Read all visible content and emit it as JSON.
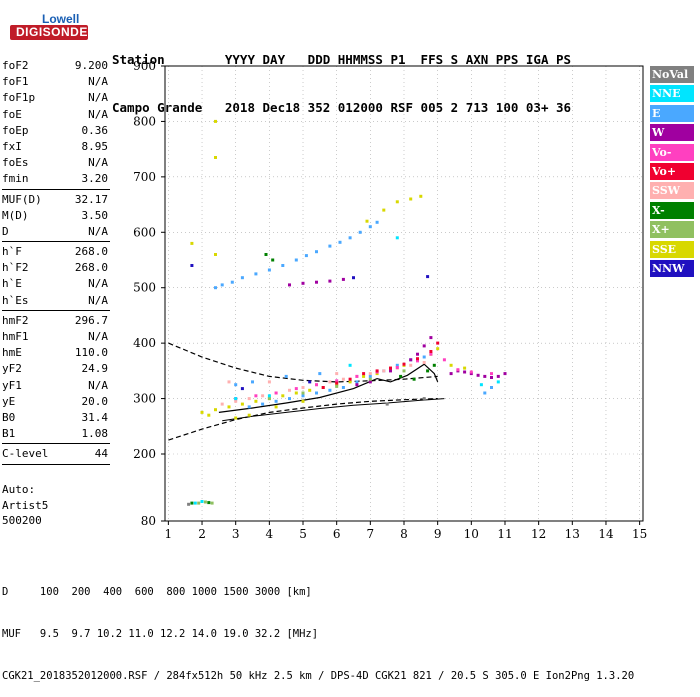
{
  "logo": {
    "line1": "Lowell",
    "line2": "DIGISONDE"
  },
  "header": {
    "row1": "Station        YYYY DAY   DDD HHMMSS P1  FFS S AXN PPS IGA PS",
    "row2": "Campo Grande   2018 Dec18 352 012000 RSF 005 2 713 100 03+ 36"
  },
  "params": [
    {
      "k": "foF2",
      "v": "9.200"
    },
    {
      "k": "foF1",
      "v": "N/A"
    },
    {
      "k": "foF1p",
      "v": "N/A"
    },
    {
      "k": "foE",
      "v": "N/A"
    },
    {
      "k": "foEp",
      "v": "0.36"
    },
    {
      "k": "fxI",
      "v": "8.95"
    },
    {
      "k": "foEs",
      "v": "N/A"
    },
    {
      "k": "fmin",
      "v": "3.20"
    },
    {
      "sep": true
    },
    {
      "k": "MUF(D)",
      "v": "32.17"
    },
    {
      "k": "M(D)",
      "v": "3.50"
    },
    {
      "k": "D",
      "v": "N/A"
    },
    {
      "sep": true
    },
    {
      "k": "h`F",
      "v": "268.0"
    },
    {
      "k": "h`F2",
      "v": "268.0"
    },
    {
      "k": "h`E",
      "v": "N/A"
    },
    {
      "k": "h`Es",
      "v": "N/A"
    },
    {
      "sep": true
    },
    {
      "k": "hmF2",
      "v": "296.7"
    },
    {
      "k": "hmF1",
      "v": "N/A"
    },
    {
      "k": "hmE",
      "v": "110.0"
    },
    {
      "k": "yF2",
      "v": "24.9"
    },
    {
      "k": "yF1",
      "v": "N/A"
    },
    {
      "k": "yE",
      "v": "20.0"
    },
    {
      "k": "B0",
      "v": "31.4"
    },
    {
      "k": "B1",
      "v": "1.08"
    },
    {
      "sep": true
    },
    {
      "k": "C-level",
      "v": "44"
    },
    {
      "sep": true
    }
  ],
  "auto": {
    "line1": "Auto:",
    "line2": "Artist5",
    "line3": "500200"
  },
  "legend": [
    {
      "label": "NoVal",
      "bg": "#808080",
      "fg": "#ffffff"
    },
    {
      "label": "NNE",
      "bg": "#00e5ff",
      "fg": "#ffffff"
    },
    {
      "label": "E",
      "bg": "#4aa8ff",
      "fg": "#ffffff"
    },
    {
      "label": "W",
      "bg": "#a000a0",
      "fg": "#ffffff"
    },
    {
      "label": "Vo-",
      "bg": "#ff40c0",
      "fg": "#ffffff"
    },
    {
      "label": "Vo+",
      "bg": "#f00030",
      "fg": "#ffffff"
    },
    {
      "label": "SSW",
      "bg": "#ffb0b0",
      "fg": "#ffffff"
    },
    {
      "label": "X-",
      "bg": "#008000",
      "fg": "#ffffff"
    },
    {
      "label": "X+",
      "bg": "#90c060",
      "fg": "#ffffff"
    },
    {
      "label": "SSE",
      "bg": "#d8d800",
      "fg": "#ffffff"
    },
    {
      "label": "NNW",
      "bg": "#2010c0",
      "fg": "#ffffff"
    }
  ],
  "footer": {
    "line1": "D     100  200  400  600  800 1000 1500 3000 [km]",
    "line2": "MUF   9.5  9.7 10.2 11.0 12.2 14.0 19.0 32.2 [MHz]",
    "line3": "CGK21_2018352012000.RSF / 284fx512h 50 kHz 2.5 km / DPS-4D CGK21 821 / 20.5 S 305.0 E Ion2Png 1.3.20"
  },
  "chart_data": {
    "type": "scatter",
    "xlim": [
      0.9,
      15.1
    ],
    "ylim": [
      80,
      900
    ],
    "xticks": [
      "1",
      "2",
      "3",
      "4",
      "5",
      "6",
      "7",
      "8",
      "9",
      "10",
      "11",
      "12",
      "13",
      "14",
      "15"
    ],
    "yticks": [
      "80",
      "200",
      "300",
      "400",
      "500",
      "600",
      "700",
      "800",
      "900"
    ],
    "grid": "dotted",
    "series": [
      {
        "color": "#4aa8ff",
        "points": [
          [
            2.4,
            500
          ],
          [
            2.6,
            505
          ],
          [
            2.9,
            510
          ],
          [
            3.2,
            518
          ],
          [
            3.6,
            525
          ],
          [
            4.0,
            532
          ],
          [
            4.4,
            540
          ],
          [
            4.8,
            550
          ],
          [
            5.1,
            558
          ],
          [
            5.4,
            565
          ],
          [
            5.8,
            575
          ],
          [
            6.1,
            582
          ],
          [
            6.4,
            590
          ],
          [
            6.7,
            600
          ],
          [
            7.0,
            610
          ],
          [
            7.2,
            618
          ],
          [
            3.4,
            285
          ],
          [
            3.8,
            290
          ],
          [
            4.2,
            295
          ],
          [
            4.6,
            300
          ],
          [
            5.0,
            305
          ],
          [
            5.4,
            310
          ],
          [
            5.8,
            315
          ],
          [
            6.2,
            320
          ],
          [
            6.6,
            330
          ],
          [
            7.0,
            340
          ],
          [
            7.4,
            350
          ],
          [
            7.8,
            360
          ],
          [
            8.2,
            370
          ],
          [
            8.6,
            375
          ],
          [
            10.4,
            310
          ],
          [
            10.6,
            320
          ],
          [
            3.0,
            325
          ],
          [
            3.5,
            330
          ],
          [
            4.5,
            340
          ],
          [
            5.5,
            345
          ]
        ]
      },
      {
        "color": "#a000a0",
        "points": [
          [
            4.6,
            505
          ],
          [
            5.0,
            508
          ],
          [
            5.4,
            510
          ],
          [
            5.8,
            512
          ],
          [
            6.2,
            515
          ],
          [
            9.4,
            345
          ],
          [
            9.6,
            350
          ],
          [
            9.8,
            348
          ],
          [
            10.0,
            345
          ],
          [
            10.2,
            342
          ],
          [
            10.4,
            340
          ],
          [
            10.6,
            338
          ],
          [
            10.8,
            340
          ],
          [
            11.0,
            345
          ],
          [
            8.4,
            380
          ],
          [
            8.6,
            395
          ],
          [
            8.8,
            410
          ],
          [
            8.2,
            370
          ],
          [
            7.6,
            350
          ],
          [
            7.0,
            330
          ],
          [
            6.6,
            325
          ]
        ]
      },
      {
        "color": "#d8d800",
        "points": [
          [
            2.4,
            800
          ],
          [
            2.4,
            735
          ],
          [
            1.7,
            580
          ],
          [
            2.4,
            560
          ],
          [
            6.9,
            620
          ],
          [
            7.4,
            640
          ],
          [
            7.8,
            655
          ],
          [
            8.2,
            660
          ],
          [
            8.5,
            665
          ],
          [
            2.0,
            275
          ],
          [
            2.4,
            280
          ],
          [
            2.8,
            285
          ],
          [
            3.2,
            290
          ],
          [
            3.6,
            295
          ],
          [
            4.0,
            300
          ],
          [
            4.4,
            305
          ],
          [
            4.8,
            310
          ],
          [
            5.2,
            315
          ],
          [
            5.6,
            320
          ],
          [
            6.0,
            325
          ],
          [
            6.4,
            330
          ],
          [
            6.8,
            340
          ],
          [
            7.2,
            345
          ],
          [
            7.6,
            355
          ],
          [
            8.0,
            360
          ],
          [
            8.4,
            370
          ],
          [
            8.8,
            380
          ],
          [
            9.0,
            390
          ],
          [
            9.4,
            360
          ],
          [
            9.8,
            355
          ],
          [
            2.2,
            270
          ],
          [
            3.0,
            265
          ],
          [
            3.4,
            270
          ],
          [
            4.2,
            285
          ],
          [
            5.0,
            295
          ]
        ]
      },
      {
        "color": "#ffb0b0",
        "points": [
          [
            2.6,
            290
          ],
          [
            3.0,
            295
          ],
          [
            3.4,
            300
          ],
          [
            3.8,
            305
          ],
          [
            4.2,
            310
          ],
          [
            4.6,
            315
          ],
          [
            5.0,
            320
          ],
          [
            5.4,
            325
          ],
          [
            5.8,
            330
          ],
          [
            6.2,
            335
          ],
          [
            6.6,
            340
          ],
          [
            7.0,
            345
          ],
          [
            7.4,
            350
          ],
          [
            7.8,
            355
          ],
          [
            8.2,
            360
          ],
          [
            8.6,
            365
          ],
          [
            2.8,
            330
          ],
          [
            4.0,
            330
          ],
          [
            6.0,
            345
          ]
        ]
      },
      {
        "color": "#ff40c0",
        "points": [
          [
            3.0,
            300
          ],
          [
            3.6,
            305
          ],
          [
            4.2,
            310
          ],
          [
            4.8,
            318
          ],
          [
            5.4,
            325
          ],
          [
            6.0,
            332
          ],
          [
            6.6,
            340
          ],
          [
            7.2,
            348
          ],
          [
            7.8,
            356
          ],
          [
            8.4,
            368
          ],
          [
            8.8,
            380
          ],
          [
            9.2,
            370
          ],
          [
            9.6,
            352
          ],
          [
            10.0,
            348
          ],
          [
            10.6,
            345
          ]
        ]
      },
      {
        "color": "#f00030",
        "points": [
          [
            5.6,
            320
          ],
          [
            6.0,
            328
          ],
          [
            6.4,
            335
          ],
          [
            6.8,
            345
          ],
          [
            7.2,
            350
          ],
          [
            7.6,
            355
          ],
          [
            8.0,
            362
          ],
          [
            8.4,
            372
          ],
          [
            8.8,
            385
          ],
          [
            9.0,
            400
          ]
        ]
      },
      {
        "color": "#008000",
        "points": [
          [
            1.7,
            112
          ],
          [
            2.0,
            115
          ],
          [
            2.2,
            113
          ],
          [
            3.9,
            560
          ],
          [
            4.1,
            550
          ],
          [
            8.3,
            335
          ],
          [
            8.7,
            350
          ],
          [
            8.9,
            360
          ],
          [
            7.9,
            340
          ]
        ]
      },
      {
        "color": "#90c060",
        "points": [
          [
            1.9,
            112
          ],
          [
            2.1,
            114
          ],
          [
            2.3,
            112
          ],
          [
            4.0,
            300
          ],
          [
            5.0,
            310
          ],
          [
            6.0,
            322
          ],
          [
            7.0,
            335
          ],
          [
            8.0,
            350
          ]
        ]
      },
      {
        "color": "#2010c0",
        "points": [
          [
            1.7,
            540
          ],
          [
            6.5,
            518
          ],
          [
            8.7,
            520
          ],
          [
            3.2,
            318
          ],
          [
            5.2,
            330
          ]
        ]
      },
      {
        "color": "#00e5ff",
        "points": [
          [
            1.8,
            112
          ],
          [
            2.0,
            115
          ],
          [
            10.3,
            325
          ],
          [
            10.8,
            330
          ],
          [
            3.0,
            300
          ],
          [
            4.0,
            305
          ],
          [
            6.4,
            360
          ],
          [
            7.8,
            590
          ]
        ]
      },
      {
        "color": "#808080",
        "points": [
          [
            1.6,
            110
          ],
          [
            7.5,
            290
          ],
          [
            8.6,
            300
          ]
        ]
      }
    ],
    "profile_dashed_upper": [
      [
        1,
        400
      ],
      [
        2,
        375
      ],
      [
        3,
        355
      ],
      [
        4,
        340
      ],
      [
        5,
        333
      ],
      [
        6,
        330
      ],
      [
        7,
        332
      ],
      [
        8,
        335
      ],
      [
        9,
        340
      ]
    ],
    "profile_dashed_lower": [
      [
        1,
        225
      ],
      [
        2,
        245
      ],
      [
        3,
        262
      ],
      [
        4,
        275
      ],
      [
        5,
        283
      ],
      [
        6,
        290
      ],
      [
        7,
        295
      ],
      [
        8,
        298
      ],
      [
        9,
        300
      ]
    ],
    "trace_solid_lower": [
      [
        2.6,
        260
      ],
      [
        3.5,
        268
      ],
      [
        4.5,
        275
      ],
      [
        5.5,
        282
      ],
      [
        6.5,
        288
      ],
      [
        7.5,
        292
      ],
      [
        8.5,
        297
      ],
      [
        9.2,
        300
      ]
    ],
    "trace_solid_upper": [
      [
        2.5,
        275
      ],
      [
        3.5,
        283
      ],
      [
        4.5,
        292
      ],
      [
        5.5,
        302
      ],
      [
        6.5,
        318
      ],
      [
        7.2,
        336
      ],
      [
        7.6,
        330
      ],
      [
        8.1,
        342
      ],
      [
        8.6,
        362
      ],
      [
        8.9,
        345
      ],
      [
        9.0,
        330
      ]
    ]
  }
}
